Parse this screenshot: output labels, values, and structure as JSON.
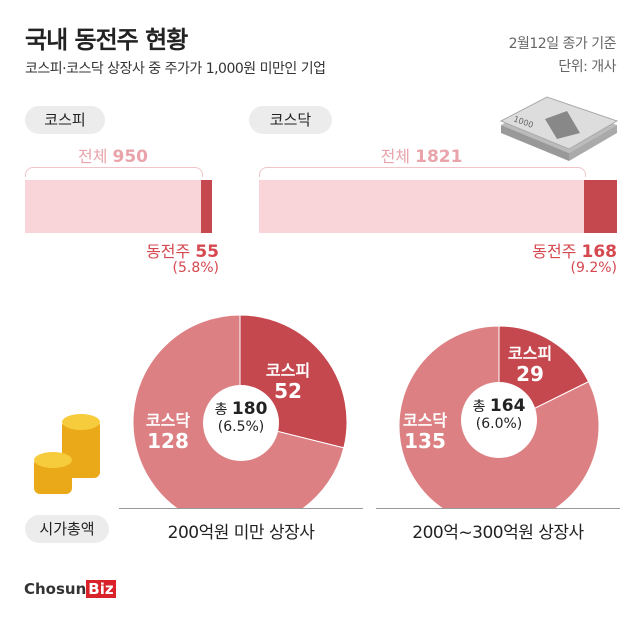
{
  "header": {
    "title": "국내 동전주 현황",
    "subtitle": "코스피·코스닥 상장사 중 주가가 1,000원 미만인 기업",
    "date": "2월12일 종가 기준",
    "unit": "단위: 개사"
  },
  "chart_data": [
    {
      "type": "bar",
      "market": "코스피",
      "total_label": "전체",
      "total": 950,
      "penny_label": "동전주",
      "penny": 55,
      "pct": "(5.8%)"
    },
    {
      "type": "bar",
      "market": "코스닥",
      "total_label": "전체",
      "total": 1821,
      "penny_label": "동전주",
      "penny": 168,
      "pct": "(9.2%)"
    },
    {
      "type": "pie",
      "caption": "200억원 미만 상장사",
      "total_prefix": "총",
      "total": 180,
      "pct": "(6.5%)",
      "slices": [
        {
          "name": "코스피",
          "value": 52
        },
        {
          "name": "코스닥",
          "value": 128
        }
      ]
    },
    {
      "type": "pie",
      "caption": "200억~300억원 상장사",
      "total_prefix": "총",
      "total": 164,
      "pct": "(6.0%)",
      "slices": [
        {
          "name": "코스피",
          "value": 29
        },
        {
          "name": "코스닥",
          "value": 135
        }
      ]
    }
  ],
  "side_label": "시가총액",
  "banknote_text": "1000",
  "logo": "ChosunBiz",
  "colors": {
    "dark": "#c5484e",
    "light": "#f9d4d8",
    "pie_light": "#dd8083"
  }
}
